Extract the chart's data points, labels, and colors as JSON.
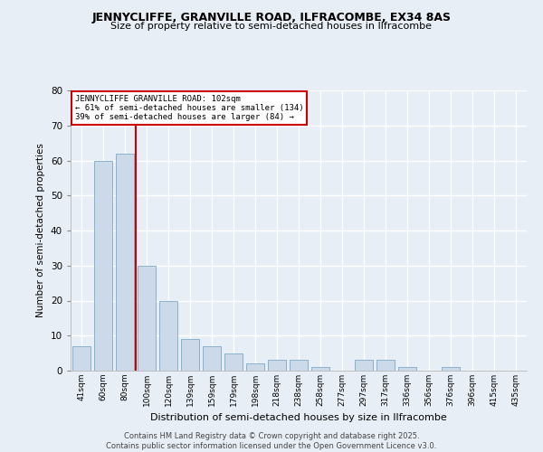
{
  "title": "JENNYCLIFFE, GRANVILLE ROAD, ILFRACOMBE, EX34 8AS",
  "subtitle": "Size of property relative to semi-detached houses in Ilfracombe",
  "xlabel": "Distribution of semi-detached houses by size in Ilfracombe",
  "ylabel": "Number of semi-detached properties",
  "categories": [
    "41sqm",
    "60sqm",
    "80sqm",
    "100sqm",
    "120sqm",
    "139sqm",
    "159sqm",
    "179sqm",
    "198sqm",
    "218sqm",
    "238sqm",
    "258sqm",
    "277sqm",
    "297sqm",
    "317sqm",
    "336sqm",
    "356sqm",
    "376sqm",
    "396sqm",
    "415sqm",
    "435sqm"
  ],
  "values": [
    7,
    60,
    62,
    30,
    20,
    9,
    7,
    5,
    2,
    3,
    3,
    1,
    0,
    3,
    3,
    1,
    0,
    1,
    0,
    0,
    0
  ],
  "bar_color": "#ccd9e8",
  "bar_edge_color": "#7aaac8",
  "highlight_line_color": "#cc0000",
  "annotation_title": "JENNYCLIFFE GRANVILLE ROAD: 102sqm",
  "annotation_line1": "← 61% of semi-detached houses are smaller (134)",
  "annotation_line2": "39% of semi-detached houses are larger (84) →",
  "annotation_box_color": "#cc0000",
  "ylim": [
    0,
    80
  ],
  "yticks": [
    0,
    10,
    20,
    30,
    40,
    50,
    60,
    70,
    80
  ],
  "background_color": "#e8eef5",
  "plot_background_color": "#e8eef5",
  "grid_color": "#ffffff",
  "footer_line1": "Contains HM Land Registry data © Crown copyright and database right 2025.",
  "footer_line2": "Contains public sector information licensed under the Open Government Licence v3.0."
}
